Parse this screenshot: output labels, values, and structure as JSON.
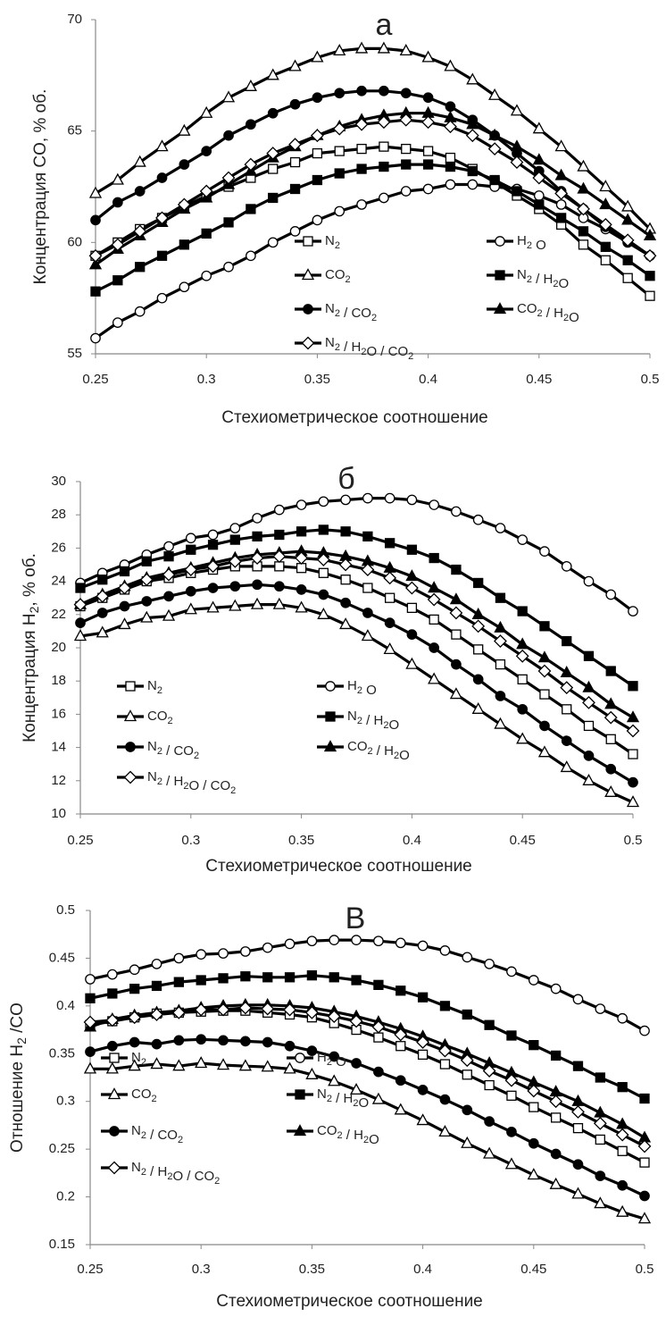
{
  "chart_data": [
    {
      "type": "line",
      "panel": "а",
      "xlabel": "Стехиометрическое соотношение",
      "ylabel": "Концентрация CO, % об.",
      "xlim": [
        0.25,
        0.5
      ],
      "ylim": [
        55,
        70
      ],
      "xticks": [
        0.25,
        0.3,
        0.35,
        0.4,
        0.45,
        0.5
      ],
      "xtick_labels": [
        "0.25",
        "0.3",
        "0.35",
        "0.4",
        "0.45",
        "0.5"
      ],
      "yticks": [
        55,
        60,
        65,
        70
      ],
      "ytick_labels": [
        "55",
        "60",
        "65",
        "70"
      ],
      "grid": false,
      "x": [
        0.25,
        0.26,
        0.27,
        0.28,
        0.29,
        0.3,
        0.31,
        0.32,
        0.33,
        0.34,
        0.35,
        0.36,
        0.37,
        0.38,
        0.39,
        0.4,
        0.41,
        0.42,
        0.43,
        0.44,
        0.45,
        0.46,
        0.47,
        0.48,
        0.49,
        0.5
      ],
      "series": [
        {
          "name": "N2",
          "marker": "square-open",
          "values": [
            59.4,
            60.0,
            60.6,
            61.1,
            61.6,
            62.1,
            62.5,
            62.9,
            63.3,
            63.6,
            64.0,
            64.1,
            64.2,
            64.3,
            64.2,
            64.1,
            63.8,
            63.3,
            62.7,
            62.1,
            61.5,
            60.8,
            59.9,
            59.2,
            58.4,
            57.6
          ]
        },
        {
          "name": "H2O",
          "marker": "circle-open",
          "values": [
            55.7,
            56.4,
            56.9,
            57.5,
            58.0,
            58.5,
            58.9,
            59.4,
            60.0,
            60.5,
            61.0,
            61.4,
            61.7,
            62.0,
            62.3,
            62.4,
            62.6,
            62.6,
            62.5,
            62.4,
            62.1,
            61.7,
            61.1,
            60.6,
            60.0,
            59.4
          ]
        },
        {
          "name": "CO2",
          "marker": "triangle-open",
          "values": [
            62.2,
            62.8,
            63.6,
            64.3,
            65.0,
            65.8,
            66.5,
            67.0,
            67.5,
            67.9,
            68.3,
            68.6,
            68.7,
            68.7,
            68.6,
            68.3,
            67.9,
            67.3,
            66.6,
            65.9,
            65.1,
            64.3,
            63.4,
            62.5,
            61.6,
            60.6
          ]
        },
        {
          "name": "N2/H2O",
          "marker": "square-filled",
          "values": [
            57.8,
            58.3,
            58.9,
            59.4,
            59.9,
            60.4,
            60.9,
            61.5,
            62.0,
            62.4,
            62.8,
            63.1,
            63.3,
            63.4,
            63.5,
            63.5,
            63.4,
            63.2,
            62.8,
            62.3,
            61.7,
            61.1,
            60.5,
            59.8,
            59.2,
            58.5
          ]
        },
        {
          "name": "N2/CO2",
          "marker": "circle-filled",
          "values": [
            61.0,
            61.8,
            62.3,
            62.9,
            63.5,
            64.1,
            64.8,
            65.3,
            65.8,
            66.2,
            66.5,
            66.7,
            66.8,
            66.8,
            66.7,
            66.5,
            66.1,
            65.5,
            64.8,
            64.0,
            63.2,
            62.3,
            61.5,
            60.7,
            60.0,
            59.4
          ]
        },
        {
          "name": "CO2/H2O",
          "marker": "triangle-filled",
          "values": [
            59.0,
            59.7,
            60.3,
            60.9,
            61.5,
            62.0,
            62.6,
            63.2,
            63.8,
            64.3,
            64.8,
            65.2,
            65.5,
            65.7,
            65.8,
            65.8,
            65.6,
            65.3,
            64.8,
            64.3,
            63.7,
            63.0,
            62.4,
            61.7,
            61.0,
            60.3
          ]
        },
        {
          "name": "N2/H2O/CO2",
          "marker": "diamond-open",
          "values": [
            59.4,
            59.9,
            60.5,
            61.1,
            61.7,
            62.3,
            62.9,
            63.5,
            64.0,
            64.4,
            64.8,
            65.1,
            65.3,
            65.4,
            65.5,
            65.4,
            65.2,
            64.8,
            64.2,
            63.6,
            62.9,
            62.2,
            61.5,
            60.8,
            60.1,
            59.4
          ]
        }
      ],
      "legend": [
        {
          "text": "N",
          "sub": "2",
          "tail": ""
        },
        {
          "text": "H",
          "sub": "2",
          "tail": "O"
        },
        {
          "text": "CO",
          "sub": "2",
          "tail": ""
        },
        {
          "text": "N",
          "sub": "2",
          "tail": "/ H",
          "sub2": "2",
          "tail2": "O"
        },
        {
          "text": "N",
          "sub": "2",
          "tail": "/ CO",
          "sub2": "2",
          "tail2": ""
        },
        {
          "text": "CO",
          "sub": "2",
          "tail": "/ H",
          "sub2": "2",
          "tail2": "O"
        },
        {
          "text": "N",
          "sub": "2",
          "tail": "/ H",
          "sub2": "2",
          "tail2": "O / CO",
          "sub3": "2"
        }
      ]
    },
    {
      "type": "line",
      "panel": "б",
      "xlabel": "Стехиометрическое соотношение",
      "ylabel": "Концентрация H2, % об.",
      "xlim": [
        0.25,
        0.5
      ],
      "ylim": [
        10,
        30
      ],
      "xticks": [
        0.25,
        0.3,
        0.35,
        0.4,
        0.45,
        0.5
      ],
      "xtick_labels": [
        "0.25",
        "0.3",
        "0.35",
        "0.4",
        "0.45",
        "0.5"
      ],
      "yticks": [
        10,
        12,
        14,
        16,
        18,
        20,
        22,
        24,
        26,
        28,
        30
      ],
      "ytick_labels": [
        "10",
        "12",
        "14",
        "16",
        "18",
        "20",
        "22",
        "24",
        "26",
        "28",
        "30"
      ],
      "grid": false,
      "x": [
        0.25,
        0.26,
        0.27,
        0.28,
        0.29,
        0.3,
        0.31,
        0.32,
        0.33,
        0.34,
        0.35,
        0.36,
        0.37,
        0.38,
        0.39,
        0.4,
        0.41,
        0.42,
        0.43,
        0.44,
        0.45,
        0.46,
        0.47,
        0.48,
        0.49,
        0.5
      ],
      "series": [
        {
          "name": "N2",
          "marker": "square-open",
          "values": [
            22.5,
            23.0,
            23.5,
            24.0,
            24.2,
            24.5,
            24.7,
            24.9,
            24.9,
            24.9,
            24.8,
            24.5,
            24.1,
            23.6,
            23.0,
            22.4,
            21.7,
            20.8,
            19.9,
            19.0,
            18.1,
            17.2,
            16.3,
            15.3,
            14.5,
            13.6
          ]
        },
        {
          "name": "H2O",
          "marker": "circle-open",
          "values": [
            23.9,
            24.5,
            25.0,
            25.6,
            26.1,
            26.6,
            26.8,
            27.2,
            27.8,
            28.3,
            28.6,
            28.8,
            28.9,
            29.0,
            29.0,
            28.9,
            28.6,
            28.2,
            27.7,
            27.2,
            26.5,
            25.8,
            24.9,
            24.0,
            23.2,
            22.2
          ]
        },
        {
          "name": "CO2",
          "marker": "triangle-open",
          "values": [
            20.7,
            20.9,
            21.4,
            21.8,
            21.9,
            22.3,
            22.4,
            22.5,
            22.6,
            22.6,
            22.4,
            22.0,
            21.4,
            20.7,
            19.9,
            19.0,
            18.1,
            17.2,
            16.3,
            15.4,
            14.5,
            13.7,
            12.8,
            12.0,
            11.3,
            10.7
          ]
        },
        {
          "name": "N2/H2O",
          "marker": "square-filled",
          "values": [
            23.6,
            24.1,
            24.6,
            25.2,
            25.5,
            25.9,
            26.2,
            26.5,
            26.7,
            26.8,
            27.0,
            27.1,
            27.0,
            26.7,
            26.3,
            25.9,
            25.4,
            24.7,
            23.9,
            23.0,
            22.2,
            21.3,
            20.4,
            19.5,
            18.6,
            17.7
          ]
        },
        {
          "name": "N2/CO2",
          "marker": "circle-filled",
          "values": [
            21.5,
            22.1,
            22.5,
            22.8,
            23.1,
            23.4,
            23.6,
            23.7,
            23.8,
            23.7,
            23.5,
            23.2,
            22.7,
            22.1,
            21.5,
            20.8,
            20.0,
            19.0,
            18.1,
            17.1,
            16.3,
            15.3,
            14.4,
            13.5,
            12.7,
            11.9
          ]
        },
        {
          "name": "CO2/H2O",
          "marker": "triangle-filled",
          "values": [
            22.6,
            23.2,
            23.7,
            24.2,
            24.5,
            24.8,
            25.1,
            25.4,
            25.6,
            25.7,
            25.8,
            25.7,
            25.5,
            25.2,
            24.8,
            24.3,
            23.6,
            22.9,
            22.0,
            21.2,
            20.2,
            19.4,
            18.5,
            17.6,
            16.6,
            15.8
          ]
        },
        {
          "name": "N2/H2O/CO2",
          "marker": "diamond-open",
          "values": [
            22.6,
            23.1,
            23.6,
            24.1,
            24.4,
            24.7,
            24.9,
            25.2,
            25.4,
            25.5,
            25.4,
            25.3,
            25.0,
            24.7,
            24.2,
            23.6,
            22.9,
            22.1,
            21.3,
            20.4,
            19.5,
            18.6,
            17.6,
            16.7,
            15.8,
            15.0
          ]
        }
      ],
      "legend": [
        {
          "text": "N",
          "sub": "2",
          "tail": ""
        },
        {
          "text": "H",
          "sub": "2",
          "tail": "O"
        },
        {
          "text": "CO",
          "sub": "2",
          "tail": ""
        },
        {
          "text": "N",
          "sub": "2",
          "tail": "/ H",
          "sub2": "2",
          "tail2": "O"
        },
        {
          "text": "N",
          "sub": "2",
          "tail": "/ CO",
          "sub2": "2",
          "tail2": ""
        },
        {
          "text": "CO",
          "sub": "2",
          "tail": "/ H",
          "sub2": "2",
          "tail2": "O"
        },
        {
          "text": "N",
          "sub": "2",
          "tail": "/ H",
          "sub2": "2",
          "tail2": "O / CO",
          "sub3": "2"
        }
      ]
    },
    {
      "type": "line",
      "panel": "В",
      "xlabel": "Стехиометрическое соотношение",
      "ylabel": "Отношение H2 /CO",
      "xlim": [
        0.25,
        0.5
      ],
      "ylim": [
        0.15,
        0.5
      ],
      "xticks": [
        0.25,
        0.3,
        0.35,
        0.4,
        0.45,
        0.5
      ],
      "xtick_labels": [
        "0.25",
        "0.3",
        "0.35",
        "0.4",
        "0.45",
        "0.5"
      ],
      "yticks": [
        0.15,
        0.2,
        0.25,
        0.3,
        0.35,
        0.4,
        0.45,
        0.5
      ],
      "ytick_labels": [
        "0.15",
        "0.2",
        "0.25",
        "0.3",
        "0.35",
        "0.4",
        "0.45",
        "0.5"
      ],
      "grid": false,
      "x": [
        0.25,
        0.26,
        0.27,
        0.28,
        0.29,
        0.3,
        0.31,
        0.32,
        0.33,
        0.34,
        0.35,
        0.36,
        0.37,
        0.38,
        0.39,
        0.4,
        0.41,
        0.42,
        0.43,
        0.44,
        0.45,
        0.46,
        0.47,
        0.48,
        0.49,
        0.5
      ],
      "series": [
        {
          "name": "N2",
          "marker": "square-open",
          "values": [
            0.38,
            0.384,
            0.388,
            0.392,
            0.393,
            0.394,
            0.395,
            0.395,
            0.393,
            0.391,
            0.388,
            0.382,
            0.375,
            0.367,
            0.358,
            0.349,
            0.339,
            0.328,
            0.317,
            0.306,
            0.294,
            0.283,
            0.272,
            0.26,
            0.248,
            0.236
          ]
        },
        {
          "name": "H2O",
          "marker": "circle-open",
          "values": [
            0.428,
            0.433,
            0.438,
            0.444,
            0.45,
            0.454,
            0.455,
            0.457,
            0.461,
            0.465,
            0.468,
            0.469,
            0.469,
            0.468,
            0.466,
            0.463,
            0.458,
            0.451,
            0.444,
            0.436,
            0.427,
            0.418,
            0.407,
            0.397,
            0.387,
            0.374
          ]
        },
        {
          "name": "CO2",
          "marker": "triangle-open",
          "values": [
            0.334,
            0.334,
            0.337,
            0.339,
            0.337,
            0.34,
            0.338,
            0.337,
            0.336,
            0.334,
            0.328,
            0.321,
            0.312,
            0.302,
            0.291,
            0.28,
            0.268,
            0.256,
            0.245,
            0.234,
            0.223,
            0.213,
            0.203,
            0.193,
            0.184,
            0.177
          ]
        },
        {
          "name": "N2/H2O",
          "marker": "square-filled",
          "values": [
            0.408,
            0.413,
            0.418,
            0.421,
            0.425,
            0.427,
            0.429,
            0.431,
            0.43,
            0.43,
            0.432,
            0.43,
            0.427,
            0.422,
            0.416,
            0.409,
            0.4,
            0.391,
            0.38,
            0.369,
            0.359,
            0.348,
            0.337,
            0.325,
            0.315,
            0.303
          ]
        },
        {
          "name": "N2/CO2",
          "marker": "circle-filled",
          "values": [
            0.352,
            0.358,
            0.362,
            0.36,
            0.364,
            0.365,
            0.364,
            0.363,
            0.362,
            0.358,
            0.353,
            0.347,
            0.34,
            0.331,
            0.322,
            0.312,
            0.302,
            0.291,
            0.279,
            0.268,
            0.256,
            0.245,
            0.234,
            0.222,
            0.212,
            0.201
          ]
        },
        {
          "name": "CO2/H2O",
          "marker": "triangle-filled",
          "values": [
            0.378,
            0.386,
            0.39,
            0.393,
            0.395,
            0.398,
            0.4,
            0.401,
            0.401,
            0.4,
            0.398,
            0.394,
            0.389,
            0.383,
            0.376,
            0.368,
            0.359,
            0.35,
            0.34,
            0.33,
            0.32,
            0.31,
            0.3,
            0.288,
            0.276,
            0.262
          ]
        },
        {
          "name": "N2/H2O/CO2",
          "marker": "diamond-open",
          "values": [
            0.383,
            0.385,
            0.388,
            0.391,
            0.393,
            0.396,
            0.396,
            0.398,
            0.397,
            0.396,
            0.393,
            0.389,
            0.384,
            0.378,
            0.37,
            0.362,
            0.353,
            0.343,
            0.332,
            0.322,
            0.311,
            0.3,
            0.289,
            0.277,
            0.265,
            0.253
          ]
        }
      ],
      "legend": [
        {
          "text": "N",
          "sub": "2",
          "tail": ""
        },
        {
          "text": "H",
          "sub": "2",
          "tail": "O"
        },
        {
          "text": "CO",
          "sub": "2",
          "tail": ""
        },
        {
          "text": "N",
          "sub": "2",
          "tail": "/ H",
          "sub2": "2",
          "tail2": "O"
        },
        {
          "text": "N",
          "sub": "2",
          "tail": "/ CO",
          "sub2": "2",
          "tail2": ""
        },
        {
          "text": "CO",
          "sub": "2",
          "tail": "/ H",
          "sub2": "2",
          "tail2": "O"
        },
        {
          "text": "N",
          "sub": "2",
          "tail": "/ H",
          "sub2": "2",
          "tail2": "O / CO",
          "sub3": "2"
        }
      ]
    }
  ]
}
